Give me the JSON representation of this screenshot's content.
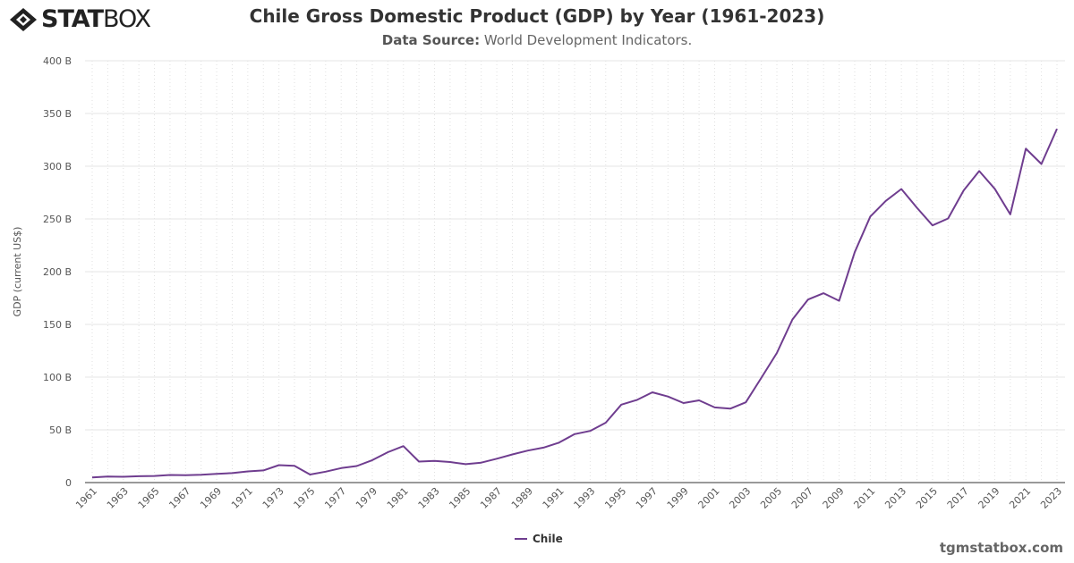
{
  "logo": {
    "text_bold": "STAT",
    "text_light": "BOX"
  },
  "header": {
    "title": "Chile Gross Domestic Product (GDP) by Year (1961-2023)",
    "source_label": "Data Source:",
    "source_value": "World Development Indicators."
  },
  "footer": {
    "site": "tgmstatbox.com"
  },
  "chart_data": {
    "type": "line",
    "title": "Chile Gross Domestic Product (GDP) by Year (1961-2023)",
    "ylabel": "GDP (current US$)",
    "xlabel": "",
    "ylim": [
      0,
      400
    ],
    "yticks": [
      "0",
      "50 B",
      "100 B",
      "150 B",
      "200 B",
      "250 B",
      "300 B",
      "350 B",
      "400 B"
    ],
    "grid": true,
    "legend": "bottom",
    "color": "#6f3d8f",
    "x": [
      1961,
      1962,
      1963,
      1964,
      1965,
      1966,
      1967,
      1968,
      1969,
      1970,
      1971,
      1972,
      1973,
      1974,
      1975,
      1976,
      1977,
      1978,
      1979,
      1980,
      1981,
      1982,
      1983,
      1984,
      1985,
      1986,
      1987,
      1988,
      1989,
      1990,
      1991,
      1992,
      1993,
      1994,
      1995,
      1996,
      1997,
      1998,
      1999,
      2000,
      2001,
      2002,
      2003,
      2004,
      2005,
      2006,
      2007,
      2008,
      2009,
      2010,
      2011,
      2012,
      2013,
      2014,
      2015,
      2016,
      2017,
      2018,
      2019,
      2020,
      2021,
      2022,
      2023
    ],
    "series": [
      {
        "name": "Chile",
        "values": [
          4.9,
          5.8,
          5.5,
          6.0,
          6.3,
          7.2,
          7.0,
          7.4,
          8.3,
          9.0,
          10.6,
          11.5,
          16.5,
          15.9,
          7.6,
          10.3,
          13.7,
          15.7,
          21.3,
          28.8,
          34.6,
          19.9,
          20.5,
          19.5,
          17.5,
          18.9,
          22.6,
          26.7,
          30.3,
          33.1,
          37.9,
          45.9,
          49.0,
          56.8,
          73.9,
          78.3,
          85.6,
          81.6,
          75.4,
          78.0,
          71.3,
          70.1,
          76.1,
          99.2,
          122.9,
          154.7,
          173.6,
          179.6,
          172.4,
          218.5,
          252.3,
          267.1,
          278.4,
          260.6,
          243.9,
          250.4,
          277.0,
          295.4,
          278.6,
          254.3,
          316.6,
          302.1,
          335.5
        ]
      }
    ]
  }
}
